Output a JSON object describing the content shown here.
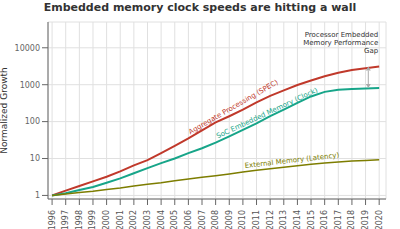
{
  "chart_data": {
    "type": "line",
    "title": "Embedded memory clock speeds are hitting a wall",
    "y_label": "Normalized Growth",
    "x": [
      1996,
      1997,
      1998,
      1999,
      2000,
      2001,
      2002,
      2003,
      2004,
      2005,
      2006,
      2007,
      2008,
      2009,
      2010,
      2011,
      2012,
      2013,
      2014,
      2015,
      2016,
      2017,
      2018,
      2019,
      2020
    ],
    "series": [
      {
        "name": "Aggregate Processing (SPEC)",
        "color": "#c0392b",
        "values": [
          1,
          1.35,
          1.8,
          2.4,
          3.2,
          4.5,
          6.5,
          9,
          14,
          22,
          35,
          58,
          95,
          140,
          210,
          330,
          500,
          700,
          980,
          1300,
          1700,
          2100,
          2500,
          2800,
          3100
        ]
      },
      {
        "name": "SoC Embedded Memory (Clock)",
        "color": "#17a589",
        "values": [
          1,
          1.15,
          1.4,
          1.7,
          2.2,
          2.9,
          4.0,
          5.5,
          7.5,
          10,
          14,
          19,
          27,
          40,
          60,
          90,
          140,
          210,
          320,
          480,
          640,
          730,
          770,
          790,
          810
        ]
      },
      {
        "name": "External Memory (Latency)",
        "color": "#7d7d00",
        "values": [
          1,
          1.1,
          1.2,
          1.3,
          1.45,
          1.6,
          1.8,
          2.0,
          2.2,
          2.5,
          2.8,
          3.1,
          3.4,
          3.8,
          4.3,
          4.8,
          5.3,
          5.8,
          6.4,
          7.0,
          7.6,
          8.1,
          8.5,
          8.9,
          9.2
        ]
      }
    ],
    "xlim": [
      1995.7,
      2020.5
    ],
    "xticks": [
      1996,
      1997,
      1998,
      1999,
      2000,
      2001,
      2002,
      2003,
      2004,
      2005,
      2006,
      2007,
      2008,
      2009,
      2010,
      2011,
      2012,
      2013,
      2014,
      2015,
      2016,
      2017,
      2018,
      2019,
      2020
    ],
    "ylim": [
      0.8,
      50000
    ],
    "yticks": [
      1,
      10,
      100,
      1000,
      10000
    ],
    "log": "y",
    "grid": true,
    "annotations": [
      {
        "text": "Processor Embedded\nMemory Performance\nGap",
        "x": 2019.2,
        "y_top": 3100,
        "y_bottom": 810
      }
    ]
  }
}
